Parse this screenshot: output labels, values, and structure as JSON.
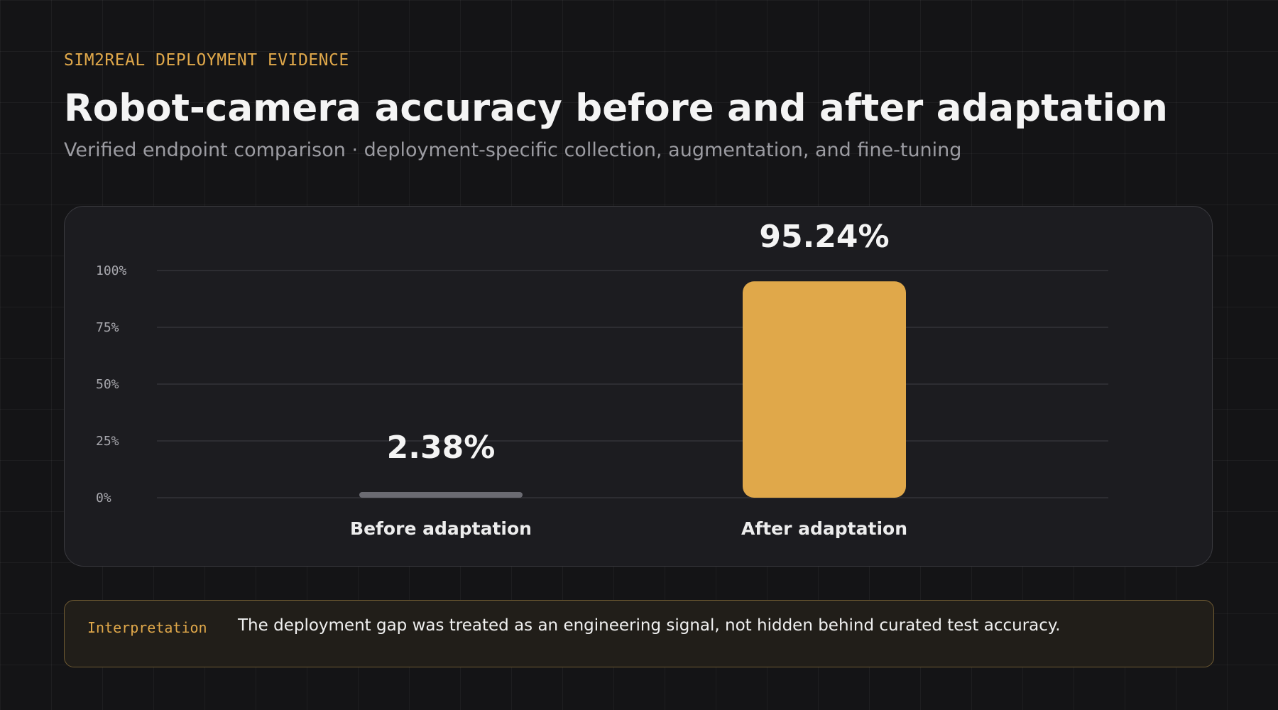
{
  "header": {
    "eyebrow": "SIM2REAL DEPLOYMENT EVIDENCE",
    "title": "Robot-camera accuracy before and after adaptation",
    "subtitle": "Verified endpoint comparison · deployment-specific collection, augmentation, and fine-tuning"
  },
  "chart_data": {
    "type": "bar",
    "categories": [
      "Before adaptation",
      "After adaptation"
    ],
    "values": [
      2.38,
      95.24
    ],
    "value_labels": [
      "2.38%",
      "95.24%"
    ],
    "ylim": [
      0,
      100
    ],
    "yticks": [
      0,
      25,
      50,
      75,
      100
    ],
    "ytick_labels": [
      "0%",
      "25%",
      "50%",
      "75%",
      "100%"
    ],
    "grid": true,
    "colors": [
      "#6b6b72",
      "#e0a84a"
    ]
  },
  "note": {
    "label": "Interpretation",
    "text": "The deployment gap was treated as an engineering signal, not hidden behind curated test accuracy."
  },
  "colors": {
    "accent": "#e0a84a",
    "background": "#141416",
    "card": "#1c1c20"
  }
}
